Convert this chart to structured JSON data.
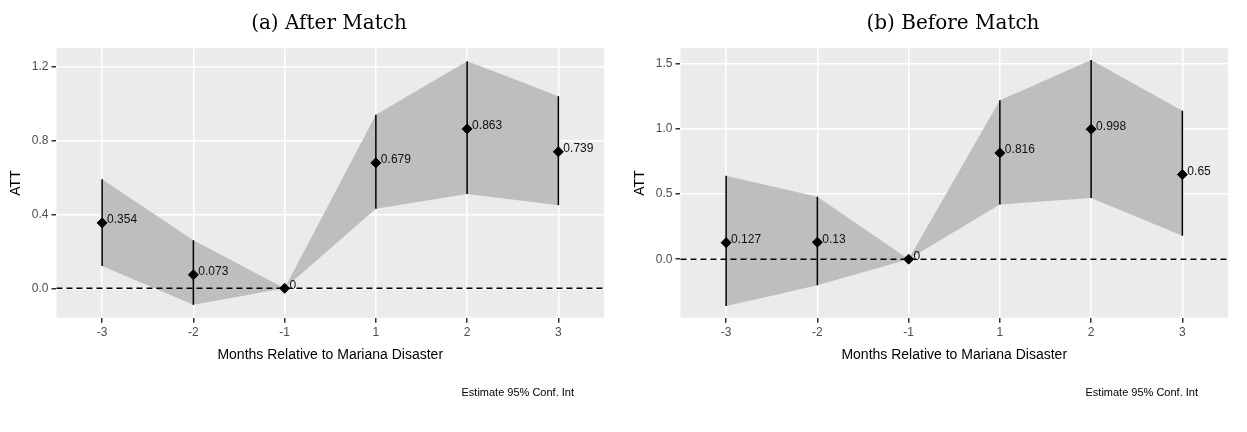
{
  "chart_data": [
    {
      "type": "scatter",
      "title": "(a) After Match",
      "xlabel": "Months Relative to Mariana Disaster",
      "ylabel": "ATT",
      "categories": [
        "-3",
        "-2",
        "-1",
        "1",
        "2",
        "3"
      ],
      "series": [
        {
          "color": "#000000",
          "values": [
            0.354,
            0.073,
            0,
            0.679,
            0.863,
            0.739
          ],
          "errors": [
            [
              0.12,
              0.59
            ],
            [
              -0.09,
              0.26
            ],
            null,
            [
              0.43,
              0.94
            ],
            [
              0.51,
              1.23
            ],
            [
              0.45,
              1.04
            ]
          ],
          "lower": [
            0.12,
            -0.09,
            0,
            0.43,
            0.51,
            0.45
          ],
          "upper": [
            0.59,
            0.26,
            0,
            0.94,
            1.23,
            1.04
          ]
        }
      ],
      "ylim": [
        -0.16,
        1.3
      ],
      "yticks": [
        {
          "value": 0,
          "label": "0.0"
        },
        0.4,
        0.8,
        1.2
      ],
      "ref_lines": [
        {
          "axis": "y",
          "value": 0,
          "line_style": "dashed",
          "color": "#000000"
        }
      ],
      "annotations": [
        "Estimate 95% Conf. Int"
      ],
      "data_labels": true,
      "grid": true,
      "legend": false,
      "marker": "diamond"
    },
    {
      "type": "scatter",
      "title": "(b) Before Match",
      "xlabel": "Months Relative to Mariana Disaster",
      "ylabel": "ATT",
      "categories": [
        "-3",
        "-2",
        "-1",
        "1",
        "2",
        "3"
      ],
      "series": [
        {
          "color": "#000000",
          "values": [
            0.127,
            0.13,
            0,
            0.816,
            0.998,
            0.65
          ],
          "errors": [
            [
              -0.36,
              0.64
            ],
            [
              -0.2,
              0.48
            ],
            null,
            [
              0.42,
              1.22
            ],
            [
              0.47,
              1.53
            ],
            [
              0.18,
              1.14
            ]
          ],
          "lower": [
            -0.36,
            -0.2,
            0,
            0.42,
            0.47,
            0.18
          ],
          "upper": [
            0.64,
            0.48,
            0,
            1.22,
            1.53,
            1.14
          ]
        }
      ],
      "ylim": [
        -0.45,
        1.62
      ],
      "yticks": [
        {
          "value": 0,
          "label": "0.0"
        },
        {
          "value": 0.5,
          "label": "0.5"
        },
        {
          "value": 1,
          "label": "1.0"
        },
        {
          "value": 1.5,
          "label": "1.5"
        }
      ],
      "ref_lines": [
        {
          "axis": "y",
          "value": 0,
          "line_style": "dashed",
          "color": "#000000"
        }
      ],
      "annotations": [
        "Estimate 95% Conf. Int"
      ],
      "data_labels": true,
      "grid": true,
      "legend": false,
      "marker": "diamond"
    }
  ]
}
